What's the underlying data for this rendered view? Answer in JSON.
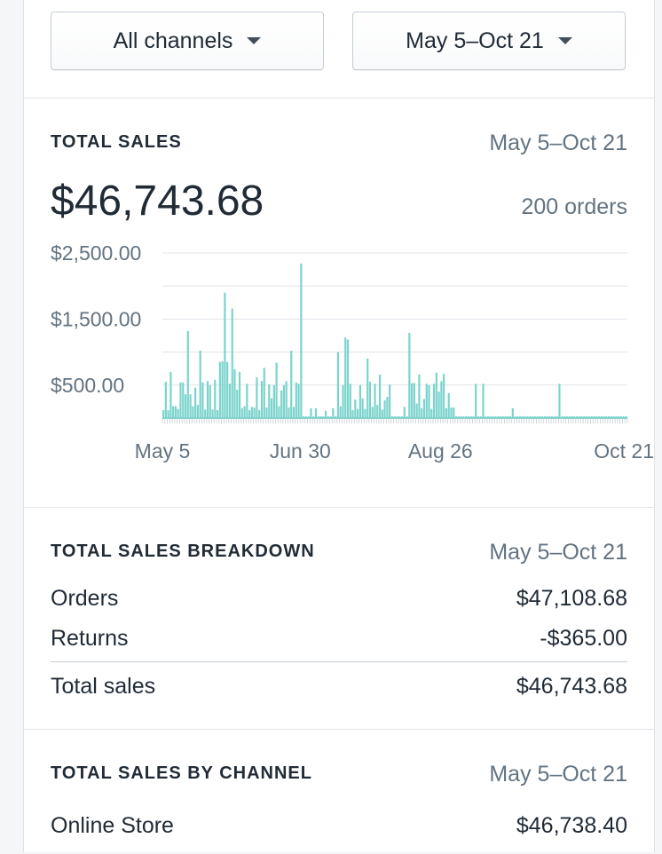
{
  "filters": {
    "channel_label": "All channels",
    "date_label": "May 5–Oct 21"
  },
  "total_sales": {
    "heading": "TOTAL SALES",
    "date_range": "May 5–Oct 21",
    "amount": "$46,743.68",
    "orders": "200 orders"
  },
  "chart_data": {
    "type": "bar",
    "color": "#7ad3cc",
    "y_tick_labels": [
      "$2,500.00",
      "$1,500.00",
      "$500.00"
    ],
    "y_tick_values": [
      2500,
      1500,
      500
    ],
    "ylim": [
      0,
      2500
    ],
    "grid": true,
    "x_tick_labels": [
      "May 5",
      "Jun 30",
      "Aug 26",
      "Oct 21"
    ],
    "x_tick_indices": [
      0,
      56,
      113,
      169
    ],
    "values": [
      120,
      550,
      120,
      700,
      180,
      180,
      140,
      540,
      540,
      360,
      1320,
      360,
      180,
      460,
      200,
      1020,
      540,
      130,
      560,
      500,
      130,
      580,
      120,
      850,
      860,
      1900,
      850,
      520,
      1660,
      740,
      430,
      700,
      150,
      180,
      520,
      120,
      170,
      160,
      620,
      120,
      560,
      760,
      160,
      510,
      300,
      500,
      840,
      180,
      420,
      500,
      560,
      160,
      1020,
      170,
      540,
      520,
      2340,
      20,
      20,
      20,
      150,
      20,
      150,
      20,
      20,
      20,
      110,
      20,
      20,
      150,
      20,
      1000,
      180,
      500,
      1220,
      1190,
      520,
      120,
      280,
      140,
      500,
      300,
      140,
      900,
      550,
      170,
      520,
      200,
      660,
      130,
      270,
      320,
      510,
      20,
      20,
      20,
      20,
      20,
      170,
      20,
      1290,
      530,
      530,
      220,
      660,
      150,
      290,
      520,
      500,
      140,
      520,
      690,
      400,
      560,
      670,
      150,
      380,
      160,
      160,
      20,
      20,
      20,
      20,
      20,
      20,
      20,
      20,
      520,
      20,
      20,
      520,
      20,
      20,
      20,
      20,
      20,
      20,
      20,
      20,
      20,
      20,
      20,
      150,
      20,
      20,
      20,
      20,
      20,
      20,
      20,
      20,
      20,
      20,
      20,
      20,
      20,
      20,
      20,
      20,
      20,
      20,
      520,
      20,
      20,
      20,
      20,
      20,
      20,
      20,
      20,
      20,
      20,
      20,
      20,
      20,
      20,
      20,
      20,
      20,
      20,
      20,
      20,
      20,
      20,
      20,
      20,
      20,
      20,
      20
    ]
  },
  "breakdown": {
    "heading": "TOTAL SALES BREAKDOWN",
    "date_range": "May 5–Oct 21",
    "rows": [
      {
        "label": "Orders",
        "value": "$47,108.68"
      },
      {
        "label": "Returns",
        "value": "-$365.00"
      }
    ],
    "total": {
      "label": "Total sales",
      "value": "$46,743.68"
    }
  },
  "by_channel": {
    "heading": "TOTAL SALES BY CHANNEL",
    "date_range": "May 5–Oct 21",
    "rows": [
      {
        "label": "Online Store",
        "value": "$46,738.40"
      }
    ]
  }
}
